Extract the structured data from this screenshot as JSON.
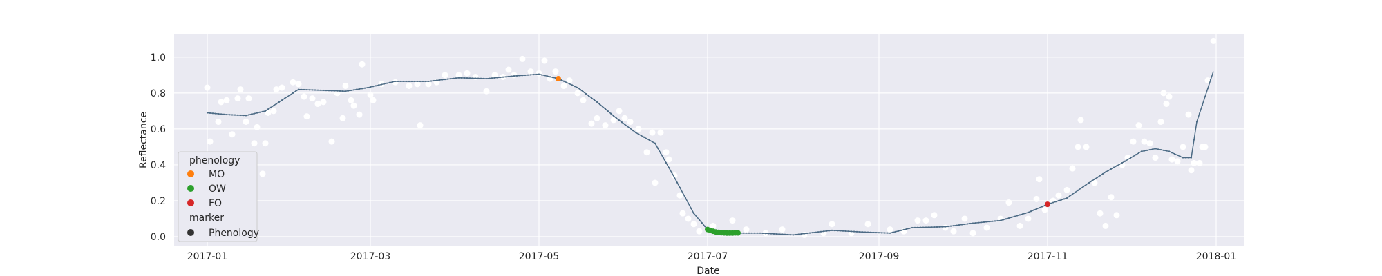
{
  "chart_data": {
    "type": "scatter",
    "title": "",
    "xlabel": "Date",
    "ylabel": "Reflectance",
    "xlim": [
      "2016-12-20",
      "2018-01-11"
    ],
    "ylim": [
      -0.05,
      1.13
    ],
    "x_ticks": [
      "2017-01",
      "2017-03",
      "2017-05",
      "2017-07",
      "2017-09",
      "2017-11",
      "2018-01"
    ],
    "y_ticks": [
      0.0,
      0.2,
      0.4,
      0.6,
      0.8,
      1.0
    ],
    "y_tick_labels": [
      "0.0",
      "0.2",
      "0.4",
      "0.6",
      "0.8",
      "1.0"
    ],
    "grid": true,
    "colors": {
      "background": "#eaeaf2",
      "grid": "#ffffff",
      "observations": "#ffffff",
      "smoothed_line": "#4c6b85",
      "MO": "#ff7f0e",
      "OW": "#2ca02c",
      "FO": "#d62728",
      "marker": "#333333"
    },
    "smoothed_series": [
      [
        "2017-01-01",
        0.69
      ],
      [
        "2017-01-08",
        0.68
      ],
      [
        "2017-01-15",
        0.675
      ],
      [
        "2017-01-22",
        0.7
      ],
      [
        "2017-01-29",
        0.77
      ],
      [
        "2017-02-03",
        0.82
      ],
      [
        "2017-02-12",
        0.815
      ],
      [
        "2017-02-20",
        0.81
      ],
      [
        "2017-02-28",
        0.83
      ],
      [
        "2017-03-10",
        0.865
      ],
      [
        "2017-03-22",
        0.865
      ],
      [
        "2017-04-02",
        0.885
      ],
      [
        "2017-04-12",
        0.88
      ],
      [
        "2017-04-22",
        0.895
      ],
      [
        "2017-05-01",
        0.905
      ],
      [
        "2017-05-08",
        0.88
      ],
      [
        "2017-05-15",
        0.83
      ],
      [
        "2017-05-22",
        0.75
      ],
      [
        "2017-05-29",
        0.66
      ],
      [
        "2017-06-05",
        0.58
      ],
      [
        "2017-06-12",
        0.52
      ],
      [
        "2017-06-19",
        0.33
      ],
      [
        "2017-06-26",
        0.13
      ],
      [
        "2017-07-01",
        0.04
      ],
      [
        "2017-07-05",
        0.025
      ],
      [
        "2017-07-12",
        0.02
      ],
      [
        "2017-07-20",
        0.02
      ],
      [
        "2017-08-01",
        0.01
      ],
      [
        "2017-08-15",
        0.035
      ],
      [
        "2017-08-27",
        0.025
      ],
      [
        "2017-09-05",
        0.02
      ],
      [
        "2017-09-13",
        0.05
      ],
      [
        "2017-09-25",
        0.055
      ],
      [
        "2017-10-05",
        0.075
      ],
      [
        "2017-10-15",
        0.09
      ],
      [
        "2017-10-25",
        0.135
      ],
      [
        "2017-11-01",
        0.18
      ],
      [
        "2017-11-08",
        0.215
      ],
      [
        "2017-11-15",
        0.29
      ],
      [
        "2017-11-22",
        0.36
      ],
      [
        "2017-11-29",
        0.42
      ],
      [
        "2017-12-05",
        0.475
      ],
      [
        "2017-12-10",
        0.49
      ],
      [
        "2017-12-15",
        0.475
      ],
      [
        "2017-12-20",
        0.44
      ],
      [
        "2017-12-23",
        0.44
      ],
      [
        "2017-12-25",
        0.64
      ],
      [
        "2017-12-31",
        0.92
      ]
    ],
    "observations": [
      [
        "2017-01-01",
        0.83
      ],
      [
        "2017-01-02",
        0.53
      ],
      [
        "2017-01-05",
        0.64
      ],
      [
        "2017-01-06",
        0.75
      ],
      [
        "2017-01-08",
        0.76
      ],
      [
        "2017-01-10",
        0.57
      ],
      [
        "2017-01-12",
        0.77
      ],
      [
        "2017-01-13",
        0.82
      ],
      [
        "2017-01-15",
        0.64
      ],
      [
        "2017-01-16",
        0.77
      ],
      [
        "2017-01-18",
        0.52
      ],
      [
        "2017-01-19",
        0.61
      ],
      [
        "2017-01-21",
        0.35
      ],
      [
        "2017-01-22",
        0.52
      ],
      [
        "2017-01-23",
        0.69
      ],
      [
        "2017-01-25",
        0.7
      ],
      [
        "2017-01-26",
        0.82
      ],
      [
        "2017-01-28",
        0.83
      ],
      [
        "2017-02-01",
        0.86
      ],
      [
        "2017-02-03",
        0.85
      ],
      [
        "2017-02-05",
        0.78
      ],
      [
        "2017-02-06",
        0.67
      ],
      [
        "2017-02-08",
        0.77
      ],
      [
        "2017-02-10",
        0.74
      ],
      [
        "2017-02-12",
        0.75
      ],
      [
        "2017-02-15",
        0.53
      ],
      [
        "2017-02-17",
        0.8
      ],
      [
        "2017-02-19",
        0.66
      ],
      [
        "2017-02-20",
        0.84
      ],
      [
        "2017-02-22",
        0.76
      ],
      [
        "2017-02-23",
        0.73
      ],
      [
        "2017-02-25",
        0.68
      ],
      [
        "2017-02-26",
        0.96
      ],
      [
        "2017-03-01",
        0.79
      ],
      [
        "2017-03-02",
        0.76
      ],
      [
        "2017-03-05",
        0.85
      ],
      [
        "2017-03-10",
        0.86
      ],
      [
        "2017-03-15",
        0.84
      ],
      [
        "2017-03-18",
        0.85
      ],
      [
        "2017-03-19",
        0.62
      ],
      [
        "2017-03-22",
        0.85
      ],
      [
        "2017-03-25",
        0.86
      ],
      [
        "2017-03-28",
        0.9
      ],
      [
        "2017-04-02",
        0.9
      ],
      [
        "2017-04-05",
        0.91
      ],
      [
        "2017-04-08",
        0.89
      ],
      [
        "2017-04-12",
        0.81
      ],
      [
        "2017-04-15",
        0.9
      ],
      [
        "2017-04-18",
        0.89
      ],
      [
        "2017-04-20",
        0.93
      ],
      [
        "2017-04-22",
        0.9
      ],
      [
        "2017-04-25",
        0.99
      ],
      [
        "2017-04-28",
        0.92
      ],
      [
        "2017-05-01",
        0.91
      ],
      [
        "2017-05-03",
        0.98
      ],
      [
        "2017-05-05",
        0.88
      ],
      [
        "2017-05-07",
        0.92
      ],
      [
        "2017-05-10",
        0.84
      ],
      [
        "2017-05-12",
        0.87
      ],
      [
        "2017-05-15",
        0.8
      ],
      [
        "2017-05-17",
        0.76
      ],
      [
        "2017-05-20",
        0.63
      ],
      [
        "2017-05-22",
        0.66
      ],
      [
        "2017-05-25",
        0.62
      ],
      [
        "2017-05-28",
        0.65
      ],
      [
        "2017-05-30",
        0.7
      ],
      [
        "2017-06-01",
        0.66
      ],
      [
        "2017-06-03",
        0.64
      ],
      [
        "2017-06-06",
        0.6
      ],
      [
        "2017-06-09",
        0.47
      ],
      [
        "2017-06-11",
        0.58
      ],
      [
        "2017-06-12",
        0.3
      ],
      [
        "2017-06-14",
        0.58
      ],
      [
        "2017-06-16",
        0.47
      ],
      [
        "2017-06-17",
        0.43
      ],
      [
        "2017-06-19",
        0.34
      ],
      [
        "2017-06-21",
        0.23
      ],
      [
        "2017-06-22",
        0.13
      ],
      [
        "2017-06-24",
        0.1
      ],
      [
        "2017-06-26",
        0.07
      ],
      [
        "2017-06-28",
        0.03
      ],
      [
        "2017-07-03",
        0.06
      ],
      [
        "2017-07-10",
        0.09
      ],
      [
        "2017-07-15",
        0.04
      ],
      [
        "2017-07-22",
        0.02
      ],
      [
        "2017-07-28",
        0.04
      ],
      [
        "2017-08-05",
        0.01
      ],
      [
        "2017-08-12",
        0.02
      ],
      [
        "2017-08-15",
        0.07
      ],
      [
        "2017-08-22",
        0.02
      ],
      [
        "2017-08-28",
        0.07
      ],
      [
        "2017-09-05",
        0.04
      ],
      [
        "2017-09-10",
        0.03
      ],
      [
        "2017-09-15",
        0.09
      ],
      [
        "2017-09-18",
        0.09
      ],
      [
        "2017-09-21",
        0.12
      ],
      [
        "2017-09-25",
        0.05
      ],
      [
        "2017-09-28",
        0.03
      ],
      [
        "2017-10-02",
        0.1
      ],
      [
        "2017-10-05",
        0.02
      ],
      [
        "2017-10-10",
        0.05
      ],
      [
        "2017-10-15",
        0.1
      ],
      [
        "2017-10-18",
        0.19
      ],
      [
        "2017-10-22",
        0.06
      ],
      [
        "2017-10-25",
        0.1
      ],
      [
        "2017-10-28",
        0.21
      ],
      [
        "2017-10-29",
        0.32
      ],
      [
        "2017-10-31",
        0.15
      ],
      [
        "2017-11-03",
        0.2
      ],
      [
        "2017-11-05",
        0.23
      ],
      [
        "2017-11-08",
        0.26
      ],
      [
        "2017-11-10",
        0.38
      ],
      [
        "2017-11-12",
        0.5
      ],
      [
        "2017-11-13",
        0.65
      ],
      [
        "2017-11-15",
        0.5
      ],
      [
        "2017-11-18",
        0.3
      ],
      [
        "2017-11-20",
        0.13
      ],
      [
        "2017-11-22",
        0.06
      ],
      [
        "2017-11-24",
        0.22
      ],
      [
        "2017-11-26",
        0.12
      ],
      [
        "2017-11-28",
        0.4
      ],
      [
        "2017-11-30",
        0.44
      ],
      [
        "2017-12-02",
        0.53
      ],
      [
        "2017-12-04",
        0.62
      ],
      [
        "2017-12-06",
        0.53
      ],
      [
        "2017-12-08",
        0.52
      ],
      [
        "2017-12-10",
        0.44
      ],
      [
        "2017-12-12",
        0.64
      ],
      [
        "2017-12-13",
        0.8
      ],
      [
        "2017-12-14",
        0.74
      ],
      [
        "2017-12-15",
        0.78
      ],
      [
        "2017-12-16",
        0.43
      ],
      [
        "2017-12-18",
        0.42
      ],
      [
        "2017-12-20",
        0.5
      ],
      [
        "2017-12-22",
        0.68
      ],
      [
        "2017-12-23",
        0.37
      ],
      [
        "2017-12-24",
        0.41
      ],
      [
        "2017-12-26",
        0.41
      ],
      [
        "2017-12-27",
        0.5
      ],
      [
        "2017-12-28",
        0.5
      ],
      [
        "2017-12-29",
        0.87
      ],
      [
        "2017-12-31",
        1.09
      ]
    ],
    "phenology_points": [
      {
        "label": "MO",
        "dates": [
          "2017-05-08"
        ],
        "values": [
          0.88
        ]
      },
      {
        "label": "OW",
        "dates": [
          "2017-07-01",
          "2017-07-02",
          "2017-07-03",
          "2017-07-04",
          "2017-07-05",
          "2017-07-06",
          "2017-07-07",
          "2017-07-08",
          "2017-07-09",
          "2017-07-10",
          "2017-07-11",
          "2017-07-12"
        ],
        "values": [
          0.04,
          0.035,
          0.03,
          0.026,
          0.024,
          0.022,
          0.021,
          0.02,
          0.02,
          0.02,
          0.021,
          0.021
        ]
      },
      {
        "label": "FO",
        "dates": [
          "2017-11-01"
        ],
        "values": [
          0.18
        ]
      }
    ],
    "legend": {
      "placement": "lower-left",
      "group_titles": [
        "phenology",
        "marker"
      ],
      "entries": [
        {
          "label": "MO",
          "color": "#ff7f0e"
        },
        {
          "label": "OW",
          "color": "#2ca02c"
        },
        {
          "label": "FO",
          "color": "#d62728"
        }
      ],
      "marker_entry": {
        "label": "Phenology",
        "color": "#333333"
      }
    }
  }
}
